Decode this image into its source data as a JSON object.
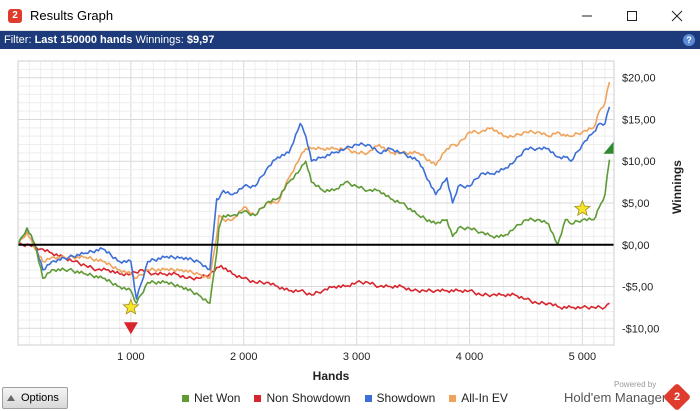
{
  "window": {
    "title": "Results Graph",
    "app_icon_glyph": "2"
  },
  "filter": {
    "prefix": "Filter:",
    "hands": "Last 150000 hands",
    "winnings_label": "Winnings:",
    "winnings_value": "$9,97",
    "help_glyph": "?"
  },
  "chart_data": {
    "type": "line",
    "xlabel": "Hands",
    "ylabel": "Winnings",
    "xlim": [
      0,
      5280
    ],
    "ylim": [
      -12,
      22
    ],
    "x_ticks": [
      1000,
      2000,
      3000,
      4000,
      5000
    ],
    "x_tick_labels": [
      "1 000",
      "2 000",
      "3 000",
      "4 000",
      "5 000"
    ],
    "y_ticks": [
      20,
      15,
      10,
      5,
      0,
      -5,
      -10
    ],
    "y_tick_labels": [
      "$20,00",
      "$15,00",
      "$10,00",
      "$5,00",
      "$0,00",
      "-$5,00",
      "-$10,00"
    ],
    "grid": true,
    "legend_position": "bottom",
    "series": [
      {
        "name": "Net Won",
        "color": "#5f9a36",
        "x": [
          0,
          80,
          150,
          220,
          300,
          450,
          600,
          750,
          900,
          1000,
          1050,
          1150,
          1300,
          1450,
          1600,
          1700,
          1760,
          1780,
          1820,
          1900,
          2000,
          2100,
          2200,
          2300,
          2400,
          2500,
          2550,
          2600,
          2700,
          2800,
          2900,
          3000,
          3100,
          3200,
          3300,
          3400,
          3550,
          3700,
          3800,
          3850,
          3900,
          4000,
          4100,
          4200,
          4300,
          4400,
          4500,
          4600,
          4700,
          4780,
          4850,
          4900,
          5000,
          5100,
          5150,
          5200,
          5240
        ],
        "y": [
          0,
          2,
          0,
          -4,
          -3,
          -3,
          -3.5,
          -4,
          -5,
          -5.5,
          -7,
          -4.5,
          -4.5,
          -5,
          -6,
          -7,
          -1,
          2,
          3.5,
          3.5,
          4,
          3.5,
          5,
          5.5,
          7.5,
          9,
          10,
          7.5,
          6.5,
          6.5,
          7.5,
          7,
          6.5,
          6.5,
          5.5,
          5,
          3.5,
          2.5,
          3,
          1,
          2,
          2,
          1.5,
          1,
          1,
          2,
          3,
          3,
          2.5,
          0,
          3,
          2.5,
          3,
          3,
          4.5,
          6,
          10.2
        ]
      },
      {
        "name": "Non Showdown",
        "color": "#d8262e",
        "x": [
          0,
          100,
          200,
          300,
          400,
          500,
          600,
          700,
          800,
          900,
          1000,
          1100,
          1200,
          1300,
          1400,
          1500,
          1600,
          1700,
          1800,
          1900,
          2000,
          2100,
          2200,
          2300,
          2400,
          2500,
          2600,
          2700,
          2800,
          2900,
          3000,
          3100,
          3200,
          3300,
          3400,
          3500,
          3600,
          3700,
          3800,
          3900,
          4000,
          4100,
          4200,
          4300,
          4400,
          4500,
          4600,
          4700,
          4800,
          4900,
          5000,
          5100,
          5200,
          5240
        ],
        "y": [
          0,
          0,
          -0.5,
          -1,
          -1.5,
          -2,
          -2.5,
          -3,
          -3,
          -3.5,
          -3.5,
          -3,
          -3.5,
          -3.5,
          -3.5,
          -4,
          -4,
          -3.5,
          -2.5,
          -3.5,
          -4,
          -4.5,
          -4.5,
          -5,
          -5.5,
          -5.5,
          -6,
          -5.5,
          -5,
          -5,
          -4.5,
          -4.5,
          -5,
          -5,
          -5,
          -5.5,
          -5.5,
          -5.5,
          -5.5,
          -5.5,
          -5.5,
          -6,
          -6,
          -6,
          -6,
          -6.5,
          -7,
          -7,
          -7.5,
          -7.5,
          -7.5,
          -7.5,
          -7.5,
          -7
        ]
      },
      {
        "name": "Showdown",
        "color": "#3d6fd6",
        "x": [
          0,
          80,
          150,
          220,
          300,
          450,
          600,
          750,
          900,
          1000,
          1050,
          1150,
          1300,
          1450,
          1600,
          1700,
          1760,
          1780,
          1820,
          1900,
          2000,
          2100,
          2200,
          2300,
          2400,
          2500,
          2550,
          2600,
          2700,
          2800,
          2900,
          3000,
          3100,
          3200,
          3300,
          3400,
          3550,
          3700,
          3800,
          3850,
          3900,
          4000,
          4100,
          4200,
          4300,
          4400,
          4500,
          4600,
          4700,
          4780,
          4850,
          4900,
          5000,
          5100,
          5150,
          5200,
          5240
        ],
        "y": [
          0,
          2,
          0,
          -3,
          -2,
          -1.5,
          -1,
          -0.5,
          -2,
          -2,
          -6.5,
          -2,
          -1.5,
          -1.5,
          -2,
          -3,
          5.5,
          5.5,
          6.5,
          6,
          7,
          7,
          9,
          10.5,
          11,
          14.5,
          13,
          10,
          10.5,
          11,
          11.5,
          12,
          12,
          11,
          11.5,
          11,
          10,
          6,
          8,
          5,
          7,
          7,
          8.5,
          8.5,
          9,
          10,
          11.5,
          11.5,
          11.5,
          10.5,
          10.5,
          10,
          12,
          13.5,
          14.5,
          14.5,
          16.5
        ]
      },
      {
        "name": "All-In EV",
        "color": "#f0a35c",
        "x": [
          0,
          80,
          150,
          220,
          300,
          450,
          600,
          750,
          900,
          1000,
          1050,
          1150,
          1300,
          1450,
          1600,
          1700,
          1760,
          1780,
          1820,
          1900,
          2000,
          2100,
          2200,
          2300,
          2400,
          2500,
          2550,
          2600,
          2700,
          2800,
          2900,
          3000,
          3100,
          3200,
          3300,
          3400,
          3550,
          3700,
          3800,
          3850,
          3900,
          4000,
          4100,
          4200,
          4300,
          4400,
          4500,
          4600,
          4700,
          4780,
          4850,
          4900,
          5000,
          5100,
          5150,
          5200,
          5240
        ],
        "y": [
          0,
          1.5,
          -0.5,
          -2,
          -1.5,
          -1.5,
          -1.5,
          -2,
          -3,
          -3.5,
          -4,
          -3,
          -3,
          -3,
          -3.5,
          -4,
          1,
          3.5,
          3,
          3,
          4.5,
          3.5,
          5,
          5,
          8,
          10.5,
          11.5,
          11.5,
          11.5,
          11.5,
          11.5,
          11,
          11,
          12,
          11,
          11,
          11,
          9.5,
          11.5,
          12,
          12,
          13.5,
          13.5,
          14,
          13,
          13,
          13.5,
          13.5,
          13,
          13.5,
          13,
          13,
          13.5,
          14,
          16,
          17,
          19.5
        ]
      }
    ],
    "markers": [
      {
        "type": "star",
        "x": 1000,
        "y": -7.5,
        "color": "#f5e52a"
      },
      {
        "type": "star",
        "x": 5000,
        "y": 4.3,
        "color": "#f5e52a"
      },
      {
        "type": "triangle-down",
        "x": 1000,
        "y": -10,
        "color": "#d8262e"
      },
      {
        "type": "triangle-up",
        "x": 5240,
        "y": 11.5,
        "color": "#2f8a2f"
      }
    ]
  },
  "options_label": "Options",
  "legend": [
    {
      "label": "Net Won",
      "color": "#5f9a36"
    },
    {
      "label": "Non Showdown",
      "color": "#d8262e"
    },
    {
      "label": "Showdown",
      "color": "#3d6fd6"
    },
    {
      "label": "All-In EV",
      "color": "#f0a35c"
    }
  ],
  "brand": {
    "powered_by": "Powered by",
    "name": "Hold'em Manager",
    "logo_glyph": "2"
  }
}
